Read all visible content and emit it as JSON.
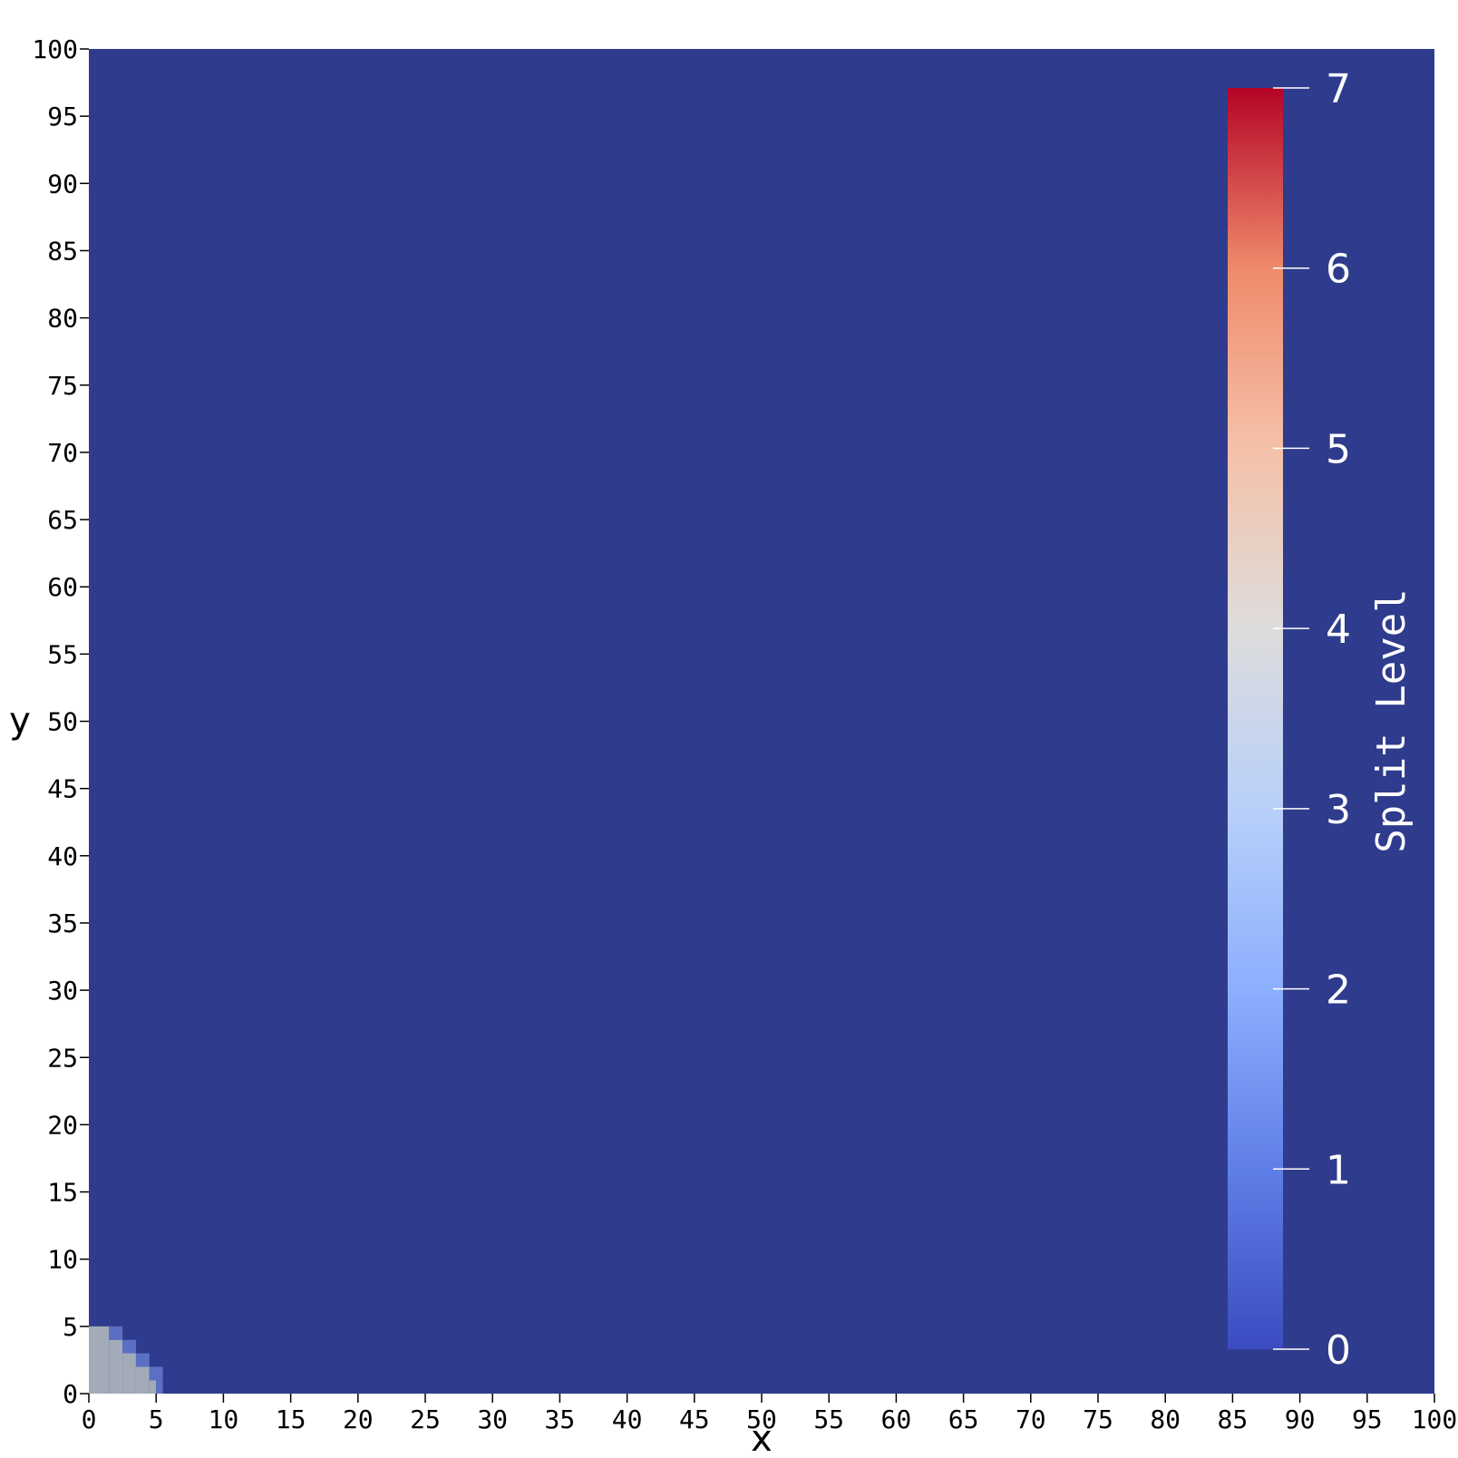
{
  "chart_data": {
    "type": "heatmap",
    "title": "",
    "xlabel": "x",
    "ylabel": "y",
    "xlim": [
      0,
      100
    ],
    "ylim": [
      0,
      100
    ],
    "xticks": [
      0,
      5,
      10,
      15,
      20,
      25,
      30,
      35,
      40,
      45,
      50,
      55,
      60,
      65,
      70,
      75,
      80,
      85,
      90,
      95,
      100
    ],
    "yticks": [
      0,
      5,
      10,
      15,
      20,
      25,
      30,
      35,
      40,
      45,
      50,
      55,
      60,
      65,
      70,
      75,
      80,
      85,
      90,
      95,
      100
    ],
    "grid": false,
    "background_value": 0,
    "background_color": "#2f3b8c",
    "cells": [
      {
        "x": [
          0,
          1.5
        ],
        "y": [
          0,
          5
        ],
        "value": 3
      },
      {
        "x": [
          1.5,
          2.5
        ],
        "y": [
          0,
          4
        ],
        "value": 3
      },
      {
        "x": [
          2.5,
          3.5
        ],
        "y": [
          0,
          3
        ],
        "value": 3
      },
      {
        "x": [
          3.5,
          4.5
        ],
        "y": [
          0,
          2
        ],
        "value": 3
      },
      {
        "x": [
          4.5,
          5
        ],
        "y": [
          0,
          1
        ],
        "value": 3
      },
      {
        "x": [
          1.5,
          2.5
        ],
        "y": [
          4,
          5
        ],
        "value": 1
      },
      {
        "x": [
          2.5,
          3.5
        ],
        "y": [
          3,
          4
        ],
        "value": 1
      },
      {
        "x": [
          3.5,
          4.5
        ],
        "y": [
          2,
          3
        ],
        "value": 1
      },
      {
        "x": [
          4.5,
          5.5
        ],
        "y": [
          1,
          2
        ],
        "value": 1
      },
      {
        "x": [
          5,
          5.5
        ],
        "y": [
          0,
          1
        ],
        "value": 1
      }
    ],
    "colorbar": {
      "title": "Split Level",
      "range": [
        0,
        7
      ],
      "ticks": [
        "0",
        "1",
        "2",
        "3",
        "4",
        "5",
        "6",
        "7"
      ],
      "colormap": "coolwarm",
      "stops": [
        {
          "offset": 0.0,
          "color": "#3b4cc0"
        },
        {
          "offset": 0.143,
          "color": "#5f7fe8"
        },
        {
          "offset": 0.286,
          "color": "#8caffe"
        },
        {
          "offset": 0.429,
          "color": "#b8d0f9"
        },
        {
          "offset": 0.571,
          "color": "#dddcdc"
        },
        {
          "offset": 0.714,
          "color": "#f5c1a9"
        },
        {
          "offset": 0.857,
          "color": "#ef8a6b"
        },
        {
          "offset": 1.0,
          "color": "#b40426"
        }
      ],
      "position": "inside-right"
    }
  }
}
